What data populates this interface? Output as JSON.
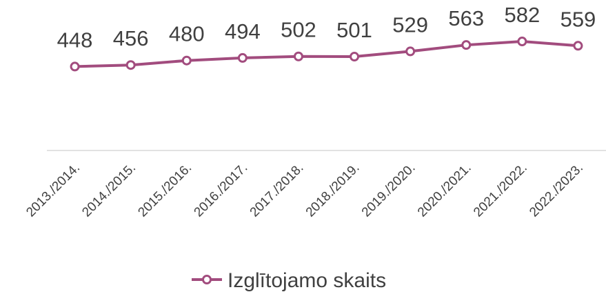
{
  "chart_data": {
    "type": "line",
    "categories": [
      "2013./2014.",
      "2014./2015.",
      "2015./2016.",
      "2016./2017.",
      "2017./2018.",
      "2018./2019.",
      "2019./2020.",
      "2020./2021.",
      "2021./2022.",
      "2022./2023."
    ],
    "series": [
      {
        "name": "Izglītojamo skaits",
        "color": "#a24c7e",
        "values": [
          448,
          456,
          480,
          494,
          502,
          501,
          529,
          563,
          582,
          559
        ]
      }
    ],
    "ylim": [
      0,
      700
    ],
    "legend": "bottom"
  }
}
